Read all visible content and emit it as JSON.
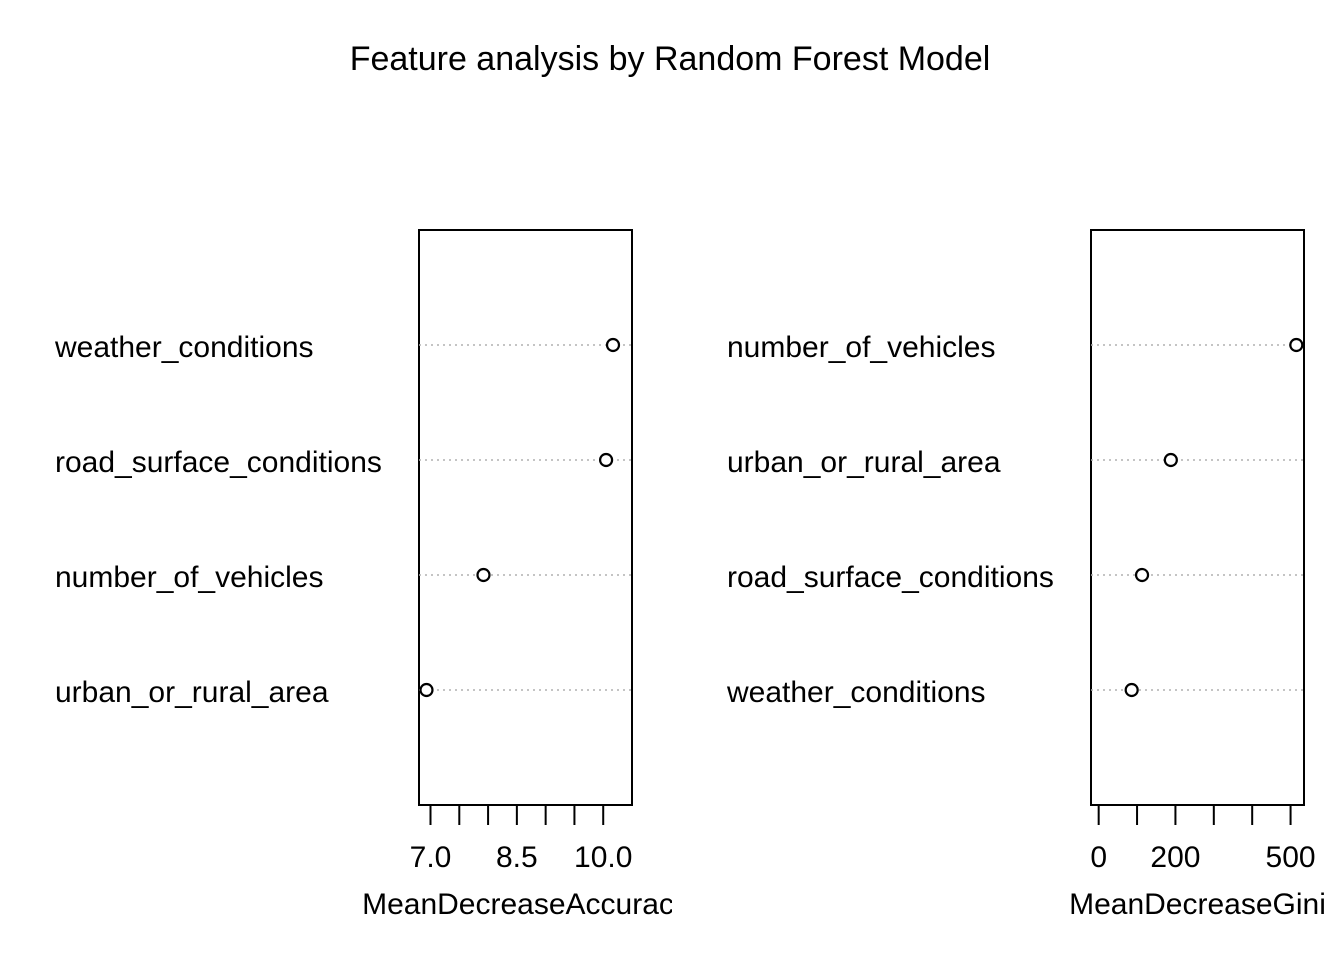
{
  "title": "Feature analysis by Random Forest Model",
  "chart_data": [
    {
      "type": "scatter",
      "subtype": "dotchart",
      "xlabel": "MeanDecreaseAccuracy",
      "xlabel_visible": "MeanDecreaseAccurac",
      "xlim": [
        6.8,
        10.5
      ],
      "tick_values": [
        7.0,
        7.5,
        8.0,
        8.5,
        9.0,
        9.5,
        10.0
      ],
      "tick_labels": [
        "7.0",
        "",
        "",
        "8.5",
        "",
        "",
        "10.0"
      ],
      "categories": [
        "weather_conditions",
        "road_surface_conditions",
        "number_of_vehicles",
        "urban_or_rural_area"
      ],
      "values": [
        10.17,
        10.05,
        7.92,
        6.93
      ]
    },
    {
      "type": "scatter",
      "subtype": "dotchart",
      "xlabel": "MeanDecreaseGini",
      "xlim": [
        -20,
        535
      ],
      "tick_values": [
        0,
        100,
        200,
        300,
        400,
        500
      ],
      "tick_labels": [
        "0",
        "",
        "200",
        "",
        "",
        "500"
      ],
      "categories": [
        "number_of_vehicles",
        "urban_or_rural_area",
        "road_surface_conditions",
        "weather_conditions"
      ],
      "values": [
        515,
        188,
        113,
        86
      ]
    }
  ]
}
